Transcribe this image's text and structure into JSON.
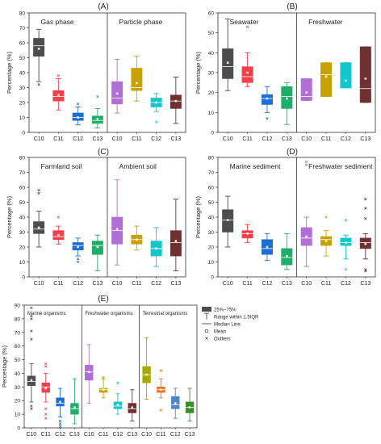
{
  "chart_data": [
    {
      "id": "A",
      "type": "box",
      "panel_label": "(A)",
      "ylabel": "Percentage (%)",
      "ylim": [
        0,
        80
      ],
      "yticks": [
        0,
        10,
        20,
        30,
        40,
        50,
        60,
        70,
        80
      ],
      "categories": [
        "C10",
        "C11",
        "C12",
        "C13"
      ],
      "groups": [
        {
          "name": "Gas phase",
          "boxes": [
            {
              "cat": "C10",
              "color": "#4d4d4d",
              "min": 34,
              "q1": 51,
              "median": 58,
              "q3": 63,
              "max": 69,
              "mean": 56,
              "outliers": [
                32
              ]
            },
            {
              "cat": "C11",
              "color": "#f0404a",
              "min": 15,
              "q1": 21,
              "median": 24,
              "q3": 28,
              "max": 36,
              "mean": 25,
              "outliers": [
                38
              ]
            },
            {
              "cat": "C12",
              "color": "#1f6fd0",
              "min": 5,
              "q1": 8,
              "median": 10,
              "q3": 13,
              "max": 17,
              "mean": 10,
              "outliers": [
                19
              ]
            },
            {
              "cat": "C13",
              "color": "#1fae6a",
              "min": 3,
              "q1": 6,
              "median": 8,
              "q3": 11,
              "max": 16,
              "mean": 9,
              "outliers": [
                24
              ]
            }
          ]
        },
        {
          "name": "Particle phase",
          "boxes": [
            {
              "cat": "C10",
              "color": "#b06fd6",
              "min": 13,
              "q1": 19,
              "median": 23,
              "q3": 34,
              "max": 49,
              "mean": 26,
              "outliers": []
            },
            {
              "cat": "C11",
              "color": "#c8a200",
              "min": 21,
              "q1": 28,
              "median": 30,
              "q3": 43,
              "max": 51,
              "mean": 33,
              "outliers": []
            },
            {
              "cat": "C12",
              "color": "#12c6c9",
              "min": 14,
              "q1": 17,
              "median": 20,
              "q3": 23,
              "max": 26,
              "mean": 20,
              "outliers": [
                7
              ]
            },
            {
              "cat": "C13",
              "color": "#6e3030",
              "min": 6,
              "q1": 16,
              "median": 21,
              "q3": 25,
              "max": 37,
              "mean": 21,
              "outliers": []
            }
          ]
        }
      ]
    },
    {
      "id": "B",
      "type": "box",
      "panel_label": "(B)",
      "ylabel": "Percentage (%)",
      "ylim": [
        0,
        60
      ],
      "yticks": [
        0,
        10,
        20,
        30,
        40,
        50,
        60
      ],
      "categories": [
        "C10",
        "C11",
        "C12",
        "C13"
      ],
      "groups": [
        {
          "name": "Seawater",
          "boxes": [
            {
              "cat": "C10",
              "color": "#4d4d4d",
              "min": 21,
              "q1": 27,
              "median": 33,
              "q3": 42,
              "max": 57,
              "mean": 35,
              "outliers": []
            },
            {
              "cat": "C11",
              "color": "#f0404a",
              "min": 23,
              "q1": 25,
              "median": 28,
              "q3": 33,
              "max": 40,
              "mean": 30,
              "outliers": [
                53
              ]
            },
            {
              "cat": "C12",
              "color": "#1f6fd0",
              "min": 10,
              "q1": 14,
              "median": 17,
              "q3": 19,
              "max": 23,
              "mean": 17,
              "outliers": [
                7
              ]
            },
            {
              "cat": "C13",
              "color": "#1fae6a",
              "min": 4,
              "q1": 12,
              "median": 18,
              "q3": 23,
              "max": 25,
              "mean": 17,
              "outliers": []
            }
          ]
        },
        {
          "name": "Freshwater",
          "boxes": [
            {
              "cat": "C10",
              "color": "#b06fd6",
              "min": 16,
              "q1": 16,
              "median": 18,
              "q3": 27,
              "max": 27,
              "mean": 20,
              "outliers": []
            },
            {
              "cat": "C11",
              "color": "#c8a200",
              "min": 18,
              "q1": 18,
              "median": 29,
              "q3": 35,
              "max": 35,
              "mean": 28,
              "outliers": []
            },
            {
              "cat": "C12",
              "color": "#12c6c9",
              "min": 22,
              "q1": 22,
              "median": 22,
              "q3": 35,
              "max": 35,
              "mean": 26,
              "outliers": []
            },
            {
              "cat": "C13",
              "color": "#6e3030",
              "min": 15,
              "q1": 15,
              "median": 22,
              "q3": 43,
              "max": 43,
              "mean": 27,
              "outliers": []
            }
          ]
        }
      ]
    },
    {
      "id": "C",
      "type": "box",
      "panel_label": "(C)",
      "ylabel": "Percentage (%)",
      "ylim": [
        0,
        80
      ],
      "yticks": [
        0,
        10,
        20,
        30,
        40,
        50,
        60,
        70,
        80
      ],
      "categories": [
        "C10",
        "C11",
        "C12",
        "C13"
      ],
      "groups": [
        {
          "name": "Farmland soil",
          "boxes": [
            {
              "cat": "C10",
              "color": "#4d4d4d",
              "min": 20,
              "q1": 29,
              "median": 32,
              "q3": 37,
              "max": 44,
              "mean": 33,
              "outliers": [
                56,
                58
              ]
            },
            {
              "cat": "C11",
              "color": "#f0404a",
              "min": 22,
              "q1": 25,
              "median": 27,
              "q3": 31,
              "max": 34,
              "mean": 28,
              "outliers": [
                40
              ]
            },
            {
              "cat": "C12",
              "color": "#1f6fd0",
              "min": 14,
              "q1": 18,
              "median": 21,
              "q3": 23,
              "max": 26,
              "mean": 20,
              "outliers": [
                10,
                12
              ]
            },
            {
              "cat": "C13",
              "color": "#1fae6a",
              "min": 4,
              "q1": 15,
              "median": 21,
              "q3": 24,
              "max": 28,
              "mean": 20,
              "outliers": []
            }
          ]
        },
        {
          "name": "Ambient soil",
          "boxes": [
            {
              "cat": "C10",
              "color": "#b06fd6",
              "min": 8,
              "q1": 22,
              "median": 31,
              "q3": 40,
              "max": 65,
              "mean": 32,
              "outliers": []
            },
            {
              "cat": "C11",
              "color": "#c8a200",
              "min": 18,
              "q1": 22,
              "median": 25,
              "q3": 28,
              "max": 34,
              "mean": 25,
              "outliers": []
            },
            {
              "cat": "C12",
              "color": "#12c6c9",
              "min": 7,
              "q1": 14,
              "median": 19,
              "q3": 24,
              "max": 33,
              "mean": 19,
              "outliers": []
            },
            {
              "cat": "C13",
              "color": "#6e3030",
              "min": 4,
              "q1": 14,
              "median": 23,
              "q3": 31,
              "max": 52,
              "mean": 24,
              "outliers": []
            }
          ]
        }
      ]
    },
    {
      "id": "D",
      "type": "box",
      "panel_label": "(D)",
      "ylabel": "Percentage (%)",
      "ylim": [
        0,
        80
      ],
      "yticks": [
        0,
        10,
        20,
        30,
        40,
        50,
        60,
        70,
        80
      ],
      "categories": [
        "C10",
        "C11",
        "C12",
        "C13"
      ],
      "groups": [
        {
          "name": "Marine sediment",
          "boxes": [
            {
              "cat": "C10",
              "color": "#4d4d4d",
              "min": 20,
              "q1": 30,
              "median": 38,
              "q3": 45,
              "max": 54,
              "mean": 38,
              "outliers": []
            },
            {
              "cat": "C11",
              "color": "#f0404a",
              "min": 23,
              "q1": 26,
              "median": 29,
              "q3": 31,
              "max": 35,
              "mean": 29,
              "outliers": []
            },
            {
              "cat": "C12",
              "color": "#1f6fd0",
              "min": 11,
              "q1": 15,
              "median": 19,
              "q3": 25,
              "max": 29,
              "mean": 20,
              "outliers": []
            },
            {
              "cat": "C13",
              "color": "#1fae6a",
              "min": 5,
              "q1": 8,
              "median": 13,
              "q3": 19,
              "max": 29,
              "mean": 14,
              "outliers": []
            }
          ]
        },
        {
          "name": "Freshwater sediment",
          "boxes": [
            {
              "cat": "C10",
              "color": "#b06fd6",
              "min": 7,
              "q1": 21,
              "median": 26,
              "q3": 33,
              "max": 40,
              "mean": 27,
              "outliers": [
                75,
                77
              ]
            },
            {
              "cat": "C11",
              "color": "#c8a200",
              "min": 14,
              "q1": 21,
              "median": 25,
              "q3": 27,
              "max": 31,
              "mean": 24,
              "outliers": [
                40
              ]
            },
            {
              "cat": "C12",
              "color": "#12c6c9",
              "min": 12,
              "q1": 21,
              "median": 23,
              "q3": 26,
              "max": 28,
              "mean": 23,
              "outliers": [
                5,
                38
              ]
            },
            {
              "cat": "C13",
              "color": "#6e3030",
              "min": 12,
              "q1": 19,
              "median": 23,
              "q3": 26,
              "max": 29,
              "mean": 22,
              "outliers": [
                4,
                5,
                39,
                46,
                52
              ]
            }
          ]
        }
      ]
    },
    {
      "id": "E",
      "type": "box",
      "panel_label": "(E)",
      "ylabel": "Percentage (%)",
      "ylim": [
        0,
        90
      ],
      "yticks": [
        0,
        10,
        20,
        30,
        40,
        50,
        60,
        70,
        80,
        90
      ],
      "categories": [
        "C10",
        "C11",
        "C12",
        "C13"
      ],
      "groups": [
        {
          "name": "Marine organisms",
          "boxes": [
            {
              "cat": "C10",
              "color": "#4d4d4d",
              "min": 19,
              "q1": 31,
              "median": 34,
              "q3": 38,
              "max": 47,
              "mean": 35,
              "outliers": [
                14,
                16,
                65,
                71,
                80,
                82,
                88
              ]
            },
            {
              "cat": "C11",
              "color": "#f0404a",
              "min": 19,
              "q1": 26,
              "median": 30,
              "q3": 33,
              "max": 40,
              "mean": 29,
              "outliers": [
                7,
                10,
                14,
                45,
                47
              ]
            },
            {
              "cat": "C12",
              "color": "#1f6fd0",
              "min": 8,
              "q1": 16,
              "median": 18,
              "q3": 22,
              "max": 29,
              "mean": 19,
              "outliers": [
                1,
                3,
                5
              ]
            },
            {
              "cat": "C13",
              "color": "#1fae6a",
              "min": 3,
              "q1": 10,
              "median": 14,
              "q3": 18,
              "max": 36,
              "mean": 15,
              "outliers": []
            }
          ]
        },
        {
          "name": "Freshwater organisms",
          "boxes": [
            {
              "cat": "C10",
              "color": "#b06fd6",
              "min": 18,
              "q1": 35,
              "median": 41,
              "q3": 46,
              "max": 61,
              "mean": 41,
              "outliers": []
            },
            {
              "cat": "C11",
              "color": "#c8a200",
              "min": 22,
              "q1": 26,
              "median": 28,
              "q3": 29,
              "max": 36,
              "mean": 28,
              "outliers": [
                37
              ]
            },
            {
              "cat": "C12",
              "color": "#12c6c9",
              "min": 10,
              "q1": 14,
              "median": 16,
              "q3": 19,
              "max": 25,
              "mean": 17,
              "outliers": [
                33
              ]
            },
            {
              "cat": "C13",
              "color": "#6e3030",
              "min": 5,
              "q1": 11,
              "median": 14,
              "q3": 18,
              "max": 28,
              "mean": 15,
              "outliers": []
            }
          ]
        },
        {
          "name": "Terrestrial organisms",
          "boxes": [
            {
              "cat": "C10",
              "color": "#a8a800",
              "min": 21,
              "q1": 33,
              "median": 39,
              "q3": 45,
              "max": 66,
              "mean": 39,
              "outliers": []
            },
            {
              "cat": "C11",
              "color": "#f07020",
              "min": 22,
              "q1": 26,
              "median": 28,
              "q3": 30,
              "max": 36,
              "mean": 28,
              "outliers": [
                13,
                42
              ]
            },
            {
              "cat": "C12",
              "color": "#4f86c6",
              "min": 7,
              "q1": 14,
              "median": 17,
              "q3": 23,
              "max": 29,
              "mean": 18,
              "outliers": []
            },
            {
              "cat": "C13",
              "color": "#3a8f2c",
              "min": 5,
              "q1": 11,
              "median": 15,
              "q3": 19,
              "max": 29,
              "mean": 15,
              "outliers": []
            }
          ]
        }
      ],
      "legend": {
        "placement": "top-right",
        "items": [
          {
            "kind": "box",
            "label": "25%~75%"
          },
          {
            "kind": "whisker",
            "label": "Range within 1.5IQR"
          },
          {
            "kind": "median",
            "label": "Median Line"
          },
          {
            "kind": "mean",
            "label": "Mean"
          },
          {
            "kind": "outlier",
            "label": "Outliers"
          }
        ]
      }
    }
  ]
}
